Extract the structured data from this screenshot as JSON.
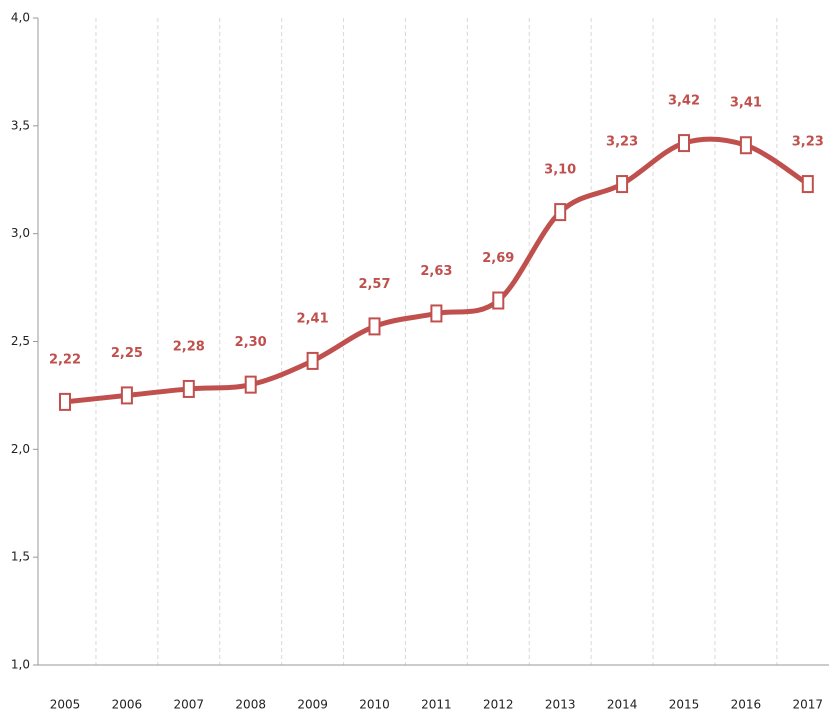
{
  "chart_data": {
    "type": "line",
    "categories": [
      "2005",
      "2006",
      "2007",
      "2008",
      "2009",
      "2010",
      "2011",
      "2012",
      "2013",
      "2014",
      "2015",
      "2016",
      "2017"
    ],
    "values": [
      2.22,
      2.25,
      2.28,
      2.3,
      2.41,
      2.57,
      2.63,
      2.69,
      3.1,
      3.23,
      3.42,
      3.41,
      3.23
    ],
    "value_labels": [
      "2,22",
      "2,25",
      "2,28",
      "2,30",
      "2,41",
      "2,57",
      "2,63",
      "2,69",
      "3,10",
      "3,23",
      "3,42",
      "3,41",
      "3,23"
    ],
    "color": "#c0504d",
    "ylim": [
      1.0,
      4.0
    ],
    "yticks": [
      {
        "value": 1.0,
        "label": "1,0"
      },
      {
        "value": 1.5,
        "label": "1,5"
      },
      {
        "value": 2.0,
        "label": "2,0"
      },
      {
        "value": 2.5,
        "label": "2,5"
      },
      {
        "value": 3.0,
        "label": "3,0"
      },
      {
        "value": 3.5,
        "label": "3,5"
      },
      {
        "value": 4.0,
        "label": "4,0"
      }
    ],
    "grid": true
  }
}
